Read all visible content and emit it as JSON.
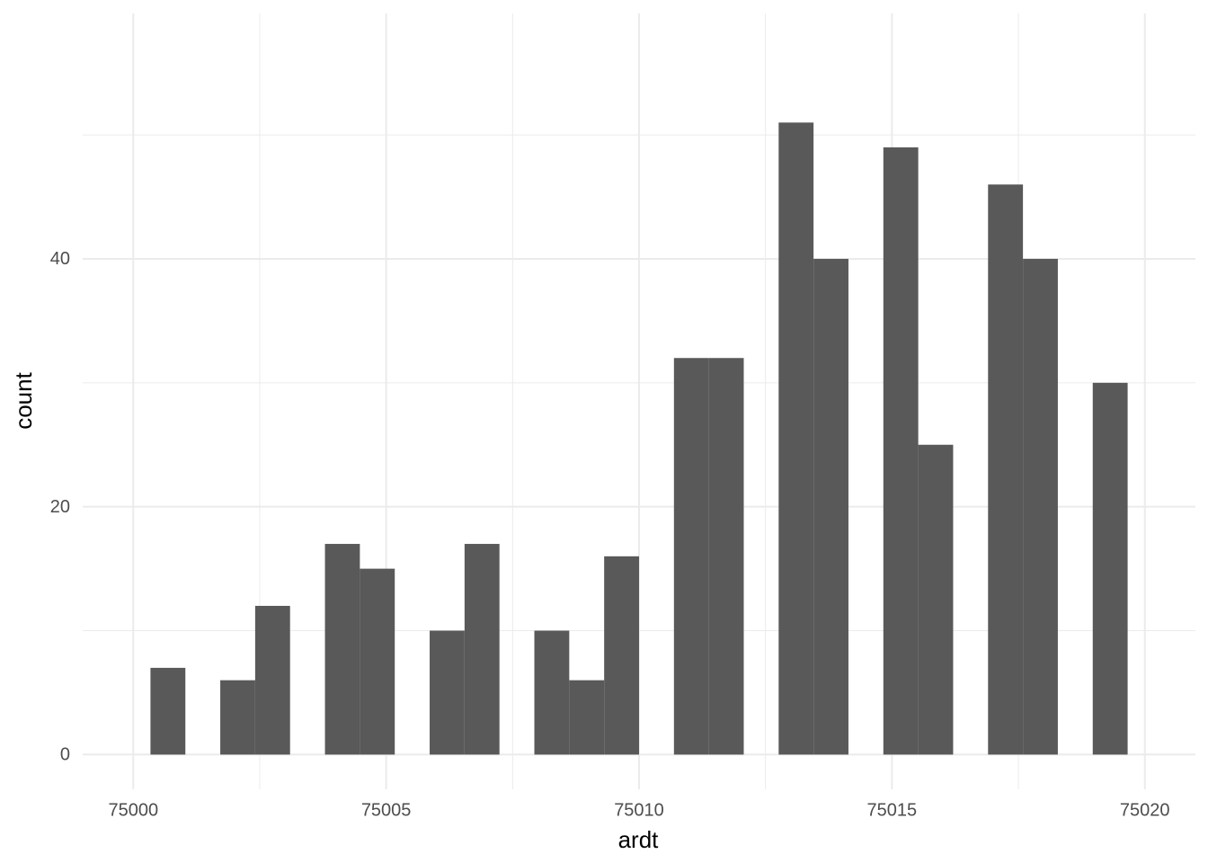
{
  "chart_data": {
    "type": "histogram",
    "x_label": "ardt",
    "y_label": "count",
    "bins": [
      75000.34,
      75001.03,
      75001.72,
      75002.41,
      75003.1,
      75003.79,
      75004.48,
      75005.17,
      75005.86,
      75006.55,
      75007.24,
      75007.93,
      75008.62,
      75009.31,
      75010.0,
      75010.69,
      75011.38,
      75012.07,
      75012.76,
      75013.45,
      75014.14,
      75014.83,
      75015.52,
      75016.21,
      75016.9,
      75017.59,
      75018.28,
      75018.97,
      75019.66
    ],
    "values": [
      7,
      0,
      6,
      12,
      0,
      17,
      15,
      0,
      10,
      17,
      0,
      10,
      6,
      16,
      0,
      32,
      32,
      0,
      51,
      40,
      0,
      49,
      25,
      0,
      46,
      40,
      0,
      30
    ],
    "color": "#595959",
    "xlim": [
      74999.0,
      75021.0
    ],
    "ylim": [
      -2.8,
      59.8
    ],
    "xticks": [
      75000,
      75005,
      75010,
      75015,
      75020
    ],
    "yticks": [
      0,
      20,
      40
    ],
    "grid": true
  }
}
